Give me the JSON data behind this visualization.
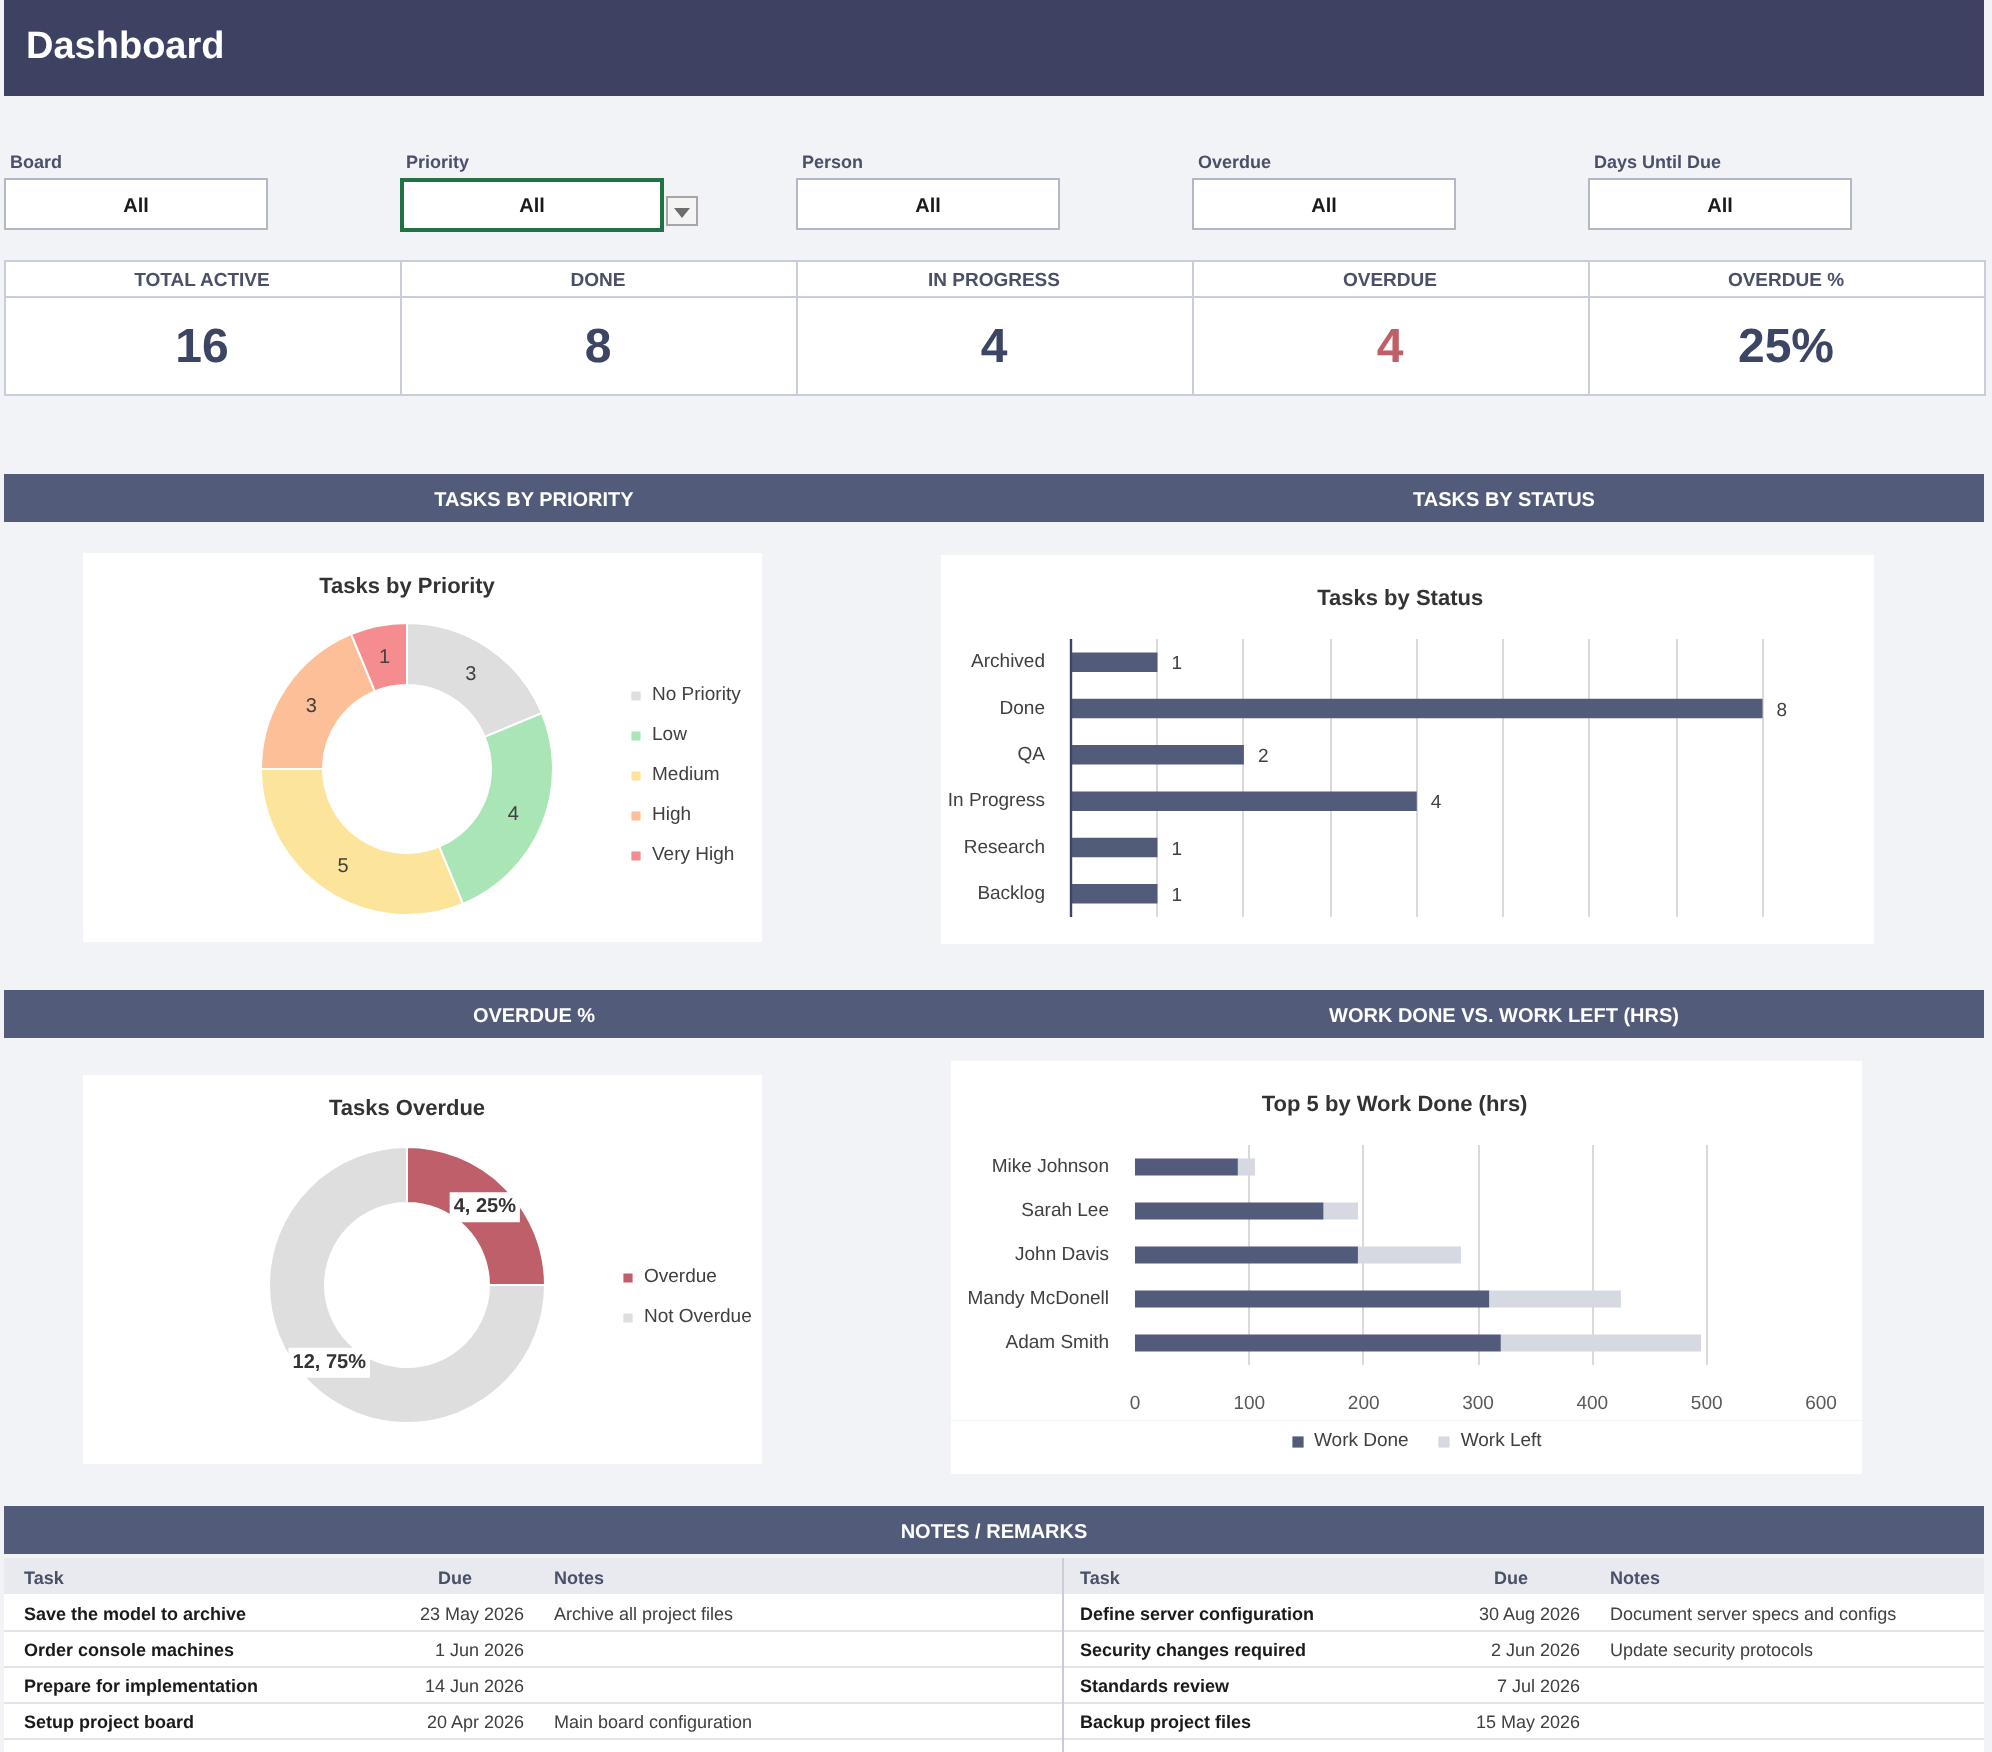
{
  "chart_data": [
    {
      "type": "other",
      "title": "Dashboard",
      "categories": [
        "Board",
        "Priority",
        "Person",
        "Overdue",
        "Days Until Due"
      ],
      "annotations": [
        "All",
        "All",
        "All",
        "All",
        "All"
      ]
    },
    {
      "type": "other",
      "categories": [
        "TOTAL ACTIVE",
        "DONE",
        "IN PROGRESS",
        "OVERDUE",
        "OVERDUE %"
      ],
      "annotations": [
        "16",
        "8",
        "4",
        "4",
        "25%"
      ]
    },
    {
      "type": "donut",
      "subtitle": "TASKS BY PRIORITY",
      "title": "Tasks by Priority",
      "categories": [
        "No Priority",
        "Low",
        "Medium",
        "High",
        "Very High"
      ],
      "values": [
        3,
        4,
        5,
        3,
        1
      ],
      "colors": [
        "#dedede",
        "#a9e5b5",
        "#fde49b",
        "#fdbf97",
        "#f58d90"
      ],
      "data_labels": true,
      "legend": "right"
    },
    {
      "type": "bar",
      "orientation": "horizontal",
      "subtitle": "TASKS BY STATUS",
      "title": "Tasks by Status",
      "categories": [
        "Archived",
        "Done",
        "QA",
        "In Progress",
        "Research",
        "Backlog"
      ],
      "values": [
        1,
        8,
        2,
        4,
        1,
        1
      ],
      "color": "#535b7a",
      "xlim": [
        0,
        9
      ],
      "xticks": [
        {
          "value": 0,
          "label": null
        },
        {
          "value": 1,
          "label": null
        },
        {
          "value": 2,
          "label": null
        },
        {
          "value": 3,
          "label": null
        },
        {
          "value": 4,
          "label": null
        },
        {
          "value": 5,
          "label": null
        },
        {
          "value": 6,
          "label": null
        },
        {
          "value": 7,
          "label": null
        },
        {
          "value": 8,
          "label": null
        },
        {
          "value": 9,
          "label": null
        }
      ],
      "grid": "x",
      "tick_labels": "y",
      "data_labels": true
    },
    {
      "type": "donut",
      "subtitle": "OVERDUE %",
      "title": "Tasks Overdue",
      "categories": [
        "Overdue",
        "Not Overdue"
      ],
      "values": [
        4,
        12
      ],
      "value_labels": [
        "4, 25%",
        "12, 75%"
      ],
      "colors": [
        "#be5f69",
        "#dedede"
      ],
      "legend": "right"
    },
    {
      "type": "bar",
      "orientation": "horizontal",
      "stacked": true,
      "subtitle": "WORK DONE VS. WORK LEFT (HRS)",
      "title": "Top 5 by Work Done (hrs)",
      "categories": [
        "Mike Johnson",
        "Sarah Lee",
        "John Davis",
        "Mandy McDonell",
        "Adam Smith"
      ],
      "series": [
        {
          "name": "Work Done",
          "color": "#535b7a",
          "values": [
            90,
            165,
            195,
            310,
            320
          ]
        },
        {
          "name": "Work Left",
          "color": "#d6d9e2",
          "values": [
            15,
            30,
            90,
            115,
            175
          ]
        }
      ],
      "xlim": [
        0,
        600
      ],
      "xticks": [
        0,
        100,
        200,
        300,
        400,
        500,
        600
      ],
      "grid": "x",
      "legend": "bottom"
    },
    {
      "type": "other",
      "title": "NOTES / REMARKS",
      "categories": [
        "Task",
        "Due",
        "Notes",
        "Task",
        "Due",
        "Notes"
      ],
      "annotations": [
        "Save the model to archive",
        "23 May 2026",
        "Archive all project files",
        "Define server configuration",
        "30 Aug 2026",
        "Document server specs and configs",
        "Order console machines",
        "1 Jun 2026",
        null,
        "Security changes required",
        "2 Jun 2026",
        "Update security protocols",
        "Prepare for implementation",
        "14 Jun 2026",
        null,
        "Standards review",
        "7 Jul 2026",
        null,
        "Setup project board",
        "20 Apr 2026",
        "Main board configuration",
        "Backup project files",
        "15 May 2026",
        null
      ]
    }
  ]
}
